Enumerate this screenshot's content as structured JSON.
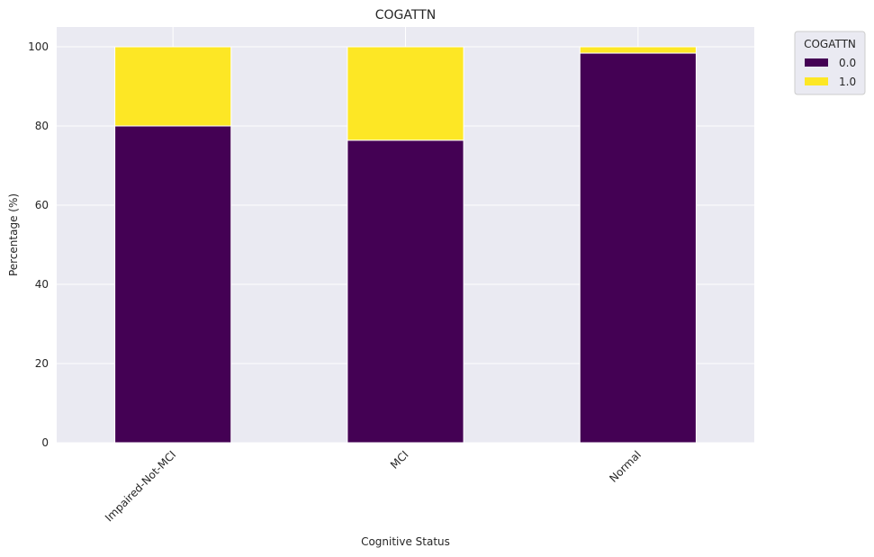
{
  "chart_data": {
    "type": "bar",
    "stacked": true,
    "title": "COGATTN",
    "xlabel": "Cognitive Status",
    "ylabel": "Percentage (%)",
    "categories": [
      "Impaired-Not-MCI",
      "MCI",
      "Normal"
    ],
    "series": [
      {
        "name": "0.0",
        "values": [
          80.0,
          76.4,
          98.4
        ],
        "color": "#440154"
      },
      {
        "name": "1.0",
        "values": [
          20.0,
          23.6,
          1.6
        ],
        "color": "#fde725"
      }
    ],
    "ylim": [
      0,
      105
    ],
    "yticks": [
      0,
      20,
      40,
      60,
      80,
      100
    ],
    "grid": true,
    "legend": {
      "title": "COGATTN",
      "placement": "outside-top-right"
    },
    "plot_background": "#eaeaf2"
  }
}
